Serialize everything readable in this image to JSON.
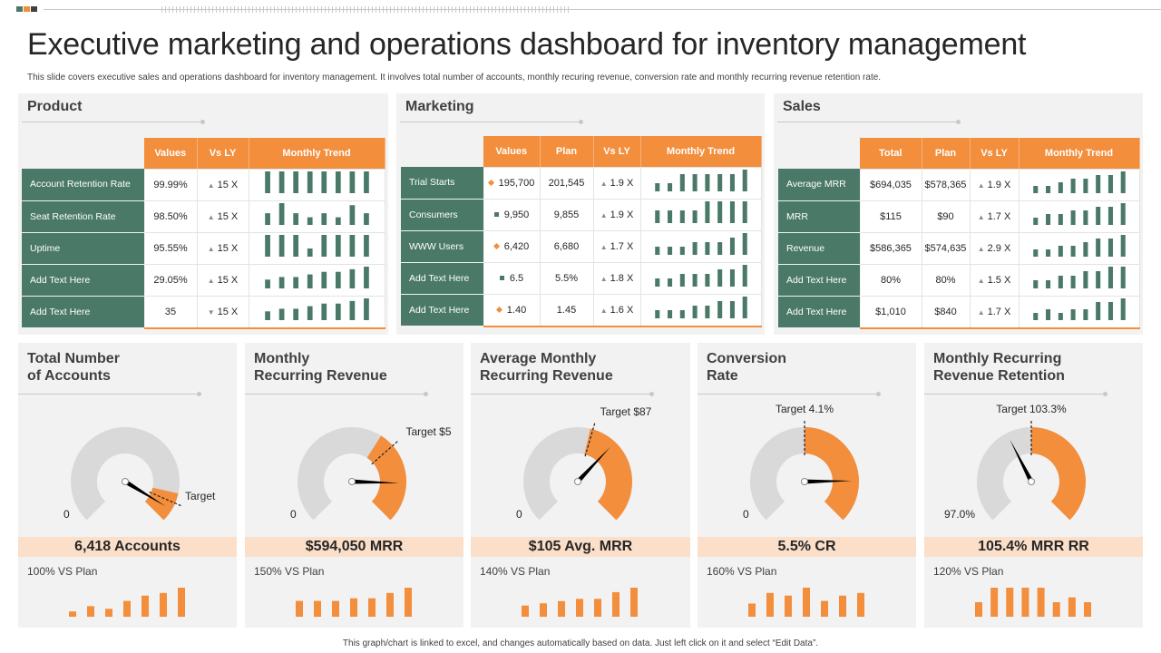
{
  "title": "Executive marketing and operations dashboard for inventory management",
  "subtitle": "This slide covers executive sales and operations dashboard for inventory management. It involves total number of accounts, monthly recuring revenue, conversion rate and monthly  recurring revenue retention rate.",
  "footer": "This graph/chart is linked to excel, and changes automatically based on data. Just left click on it and select “Edit Data”.",
  "colors": {
    "orange": "#f28e3c",
    "green": "#4a7a67",
    "gray": "#d9d9d9",
    "band": "#fbdfc9",
    "needle": "#000000"
  },
  "chart_data": [
    {
      "type": "table",
      "title": "Product",
      "headers": [
        "Values",
        "Vs LY",
        "Monthly Trend"
      ],
      "rows": [
        {
          "label": "Account Retention Rate",
          "values": "99.99%",
          "vs_ly": "15 X",
          "dir": "up",
          "trend": [
            3,
            3,
            3,
            3,
            3,
            3,
            3,
            3
          ]
        },
        {
          "label": "Seat Retention Rate",
          "values": "98.50%",
          "vs_ly": "15 X",
          "dir": "up",
          "trend": [
            4,
            9,
            4,
            2,
            4,
            2,
            8,
            4
          ]
        },
        {
          "label": "Uptime",
          "values": "95.55%",
          "vs_ly": "15 X",
          "dir": "up",
          "trend": [
            8,
            8,
            8,
            2,
            8,
            8,
            8,
            8
          ]
        },
        {
          "label": "Add Text Here",
          "values": "29.05%",
          "vs_ly": "15 X",
          "dir": "up",
          "trend": [
            2,
            3,
            3,
            4,
            5,
            5,
            6,
            7
          ]
        },
        {
          "label": "Add Text Here",
          "values": "35",
          "vs_ly": "15 X",
          "dir": "down",
          "trend": [
            2,
            3,
            3,
            4,
            5,
            5,
            6,
            7
          ]
        }
      ]
    },
    {
      "type": "table",
      "title": "Marketing",
      "headers": [
        "Values",
        "Plan",
        "Vs LY",
        "Monthly Trend"
      ],
      "rows": [
        {
          "label": "Trial Starts",
          "values": "195,700",
          "marker": "diamond",
          "plan": "201,545",
          "vs_ly": "1.9 X",
          "dir": "up",
          "trend": [
            1,
            1,
            3,
            3,
            3,
            3,
            3,
            4
          ]
        },
        {
          "label": "Consumers",
          "values": "9,950",
          "marker": "square",
          "plan": "9,855",
          "vs_ly": "1.9 X",
          "dir": "up",
          "trend": [
            1,
            1,
            1,
            1,
            2,
            2,
            2,
            2
          ]
        },
        {
          "label": "WWW Users",
          "values": "6,420",
          "marker": "diamond",
          "plan": "6,680",
          "vs_ly": "1.7 X",
          "dir": "up",
          "trend": [
            1,
            1,
            1,
            2,
            2,
            2,
            3,
            4
          ]
        },
        {
          "label": "Add Text Here",
          "values": "6.5",
          "marker": "square",
          "plan": "5.5%",
          "vs_ly": "1.8 X",
          "dir": "up",
          "trend": [
            1,
            1,
            2,
            2,
            2,
            3,
            3,
            4
          ]
        },
        {
          "label": "Add Text Here",
          "values": "1.40",
          "marker": "diamond",
          "plan": "1.45",
          "vs_ly": "1.6 X",
          "dir": "up",
          "trend": [
            1,
            1,
            1,
            2,
            2,
            3,
            3,
            4
          ]
        }
      ]
    },
    {
      "type": "table",
      "title": "Sales",
      "headers": [
        "Total",
        "Plan",
        "Vs LY",
        "Monthly Trend"
      ],
      "rows": [
        {
          "label": "Average MRR",
          "values": "$694,035",
          "plan": "$578,365",
          "vs_ly": "1.9 X",
          "dir": "up",
          "trend": [
            1,
            1,
            2,
            3,
            3,
            4,
            4,
            5
          ]
        },
        {
          "label": "MRR",
          "values": "$115",
          "plan": "$90",
          "vs_ly": "1.7 X",
          "dir": "up",
          "trend": [
            1,
            2,
            2,
            3,
            3,
            4,
            4,
            5
          ]
        },
        {
          "label": "Revenue",
          "values": "$586,365",
          "plan": "$574,635",
          "vs_ly": "2.9 X",
          "dir": "up",
          "trend": [
            1,
            1,
            2,
            2,
            3,
            4,
            4,
            5
          ]
        },
        {
          "label": "Add Text Here",
          "values": "80%",
          "plan": "80%",
          "vs_ly": "1.5 X",
          "dir": "up",
          "trend": [
            1,
            1,
            2,
            2,
            3,
            3,
            4,
            4
          ]
        },
        {
          "label": "Add Text Here",
          "values": "$1,010",
          "plan": "$840",
          "vs_ly": "1.7 X",
          "dir": "up",
          "trend": [
            1,
            2,
            1,
            2,
            2,
            4,
            4,
            5
          ]
        }
      ]
    },
    {
      "type": "gauge",
      "title": "Total Number of Accounts",
      "title_lines": [
        "Total Number",
        "of Accounts"
      ],
      "min_label": "0",
      "max_label": "",
      "target_label": "Target",
      "fill_start": 0.88,
      "fill_end": 1.0,
      "target": 0.92,
      "needle": 0.95,
      "kpi": "6,418 Accounts",
      "vs_plan": "100% VS Plan",
      "bars": [
        1,
        2,
        1.5,
        3,
        4,
        4.5,
        5.5
      ]
    },
    {
      "type": "gauge",
      "title": "Monthly Recurring Revenue",
      "title_lines": [
        "Monthly",
        "Recurring Revenue"
      ],
      "min_label": "0",
      "max_label": "",
      "target_label": "Target $5",
      "fill_start": 0.62,
      "fill_end": 1.0,
      "target": 0.68,
      "needle": 0.84,
      "kpi": "$594,050 MRR",
      "vs_plan": "150% VS Plan",
      "bars": [
        3,
        3,
        3,
        3.5,
        3.5,
        4.5,
        5.5
      ]
    },
    {
      "type": "gauge",
      "title": "Average Monthly Recurring Revenue",
      "title_lines": [
        "Average Monthly",
        "Recurring Revenue"
      ],
      "min_label": "0",
      "max_label": "",
      "target_label": "Target $87",
      "fill_start": 0.55,
      "fill_end": 1.0,
      "target": 0.56,
      "needle": 0.66,
      "kpi": "$105 Avg. MRR",
      "vs_plan": "140% VS Plan",
      "bars": [
        2.5,
        3,
        3.5,
        4,
        4,
        5.5,
        6.5
      ]
    },
    {
      "type": "gauge",
      "title": "Conversion Rate",
      "title_lines": [
        "Conversion",
        "Rate"
      ],
      "min_label": "0",
      "max_label": "",
      "target_label": "Target 4.1%",
      "fill_start": 0.5,
      "fill_end": 1.0,
      "target": 0.5,
      "needle": 0.83,
      "kpi": "5.5% CR",
      "vs_plan": "160% VS Plan",
      "bars": [
        2.5,
        4.5,
        4,
        5.5,
        3,
        4,
        4.5
      ]
    },
    {
      "type": "gauge",
      "title": "Monthly Recurring Revenue Retention",
      "title_lines": [
        "Monthly Recurring",
        "Revenue Retention"
      ],
      "min_label": "97.0%",
      "max_label": "",
      "target_label": "Target 103.3%",
      "fill_start": 0.5,
      "fill_end": 1.0,
      "target": 0.5,
      "needle": 0.4,
      "kpi": "105.4% MRR RR",
      "vs_plan": "120% VS Plan",
      "bars": [
        3,
        6,
        6,
        6,
        6,
        3,
        4,
        3
      ]
    }
  ]
}
